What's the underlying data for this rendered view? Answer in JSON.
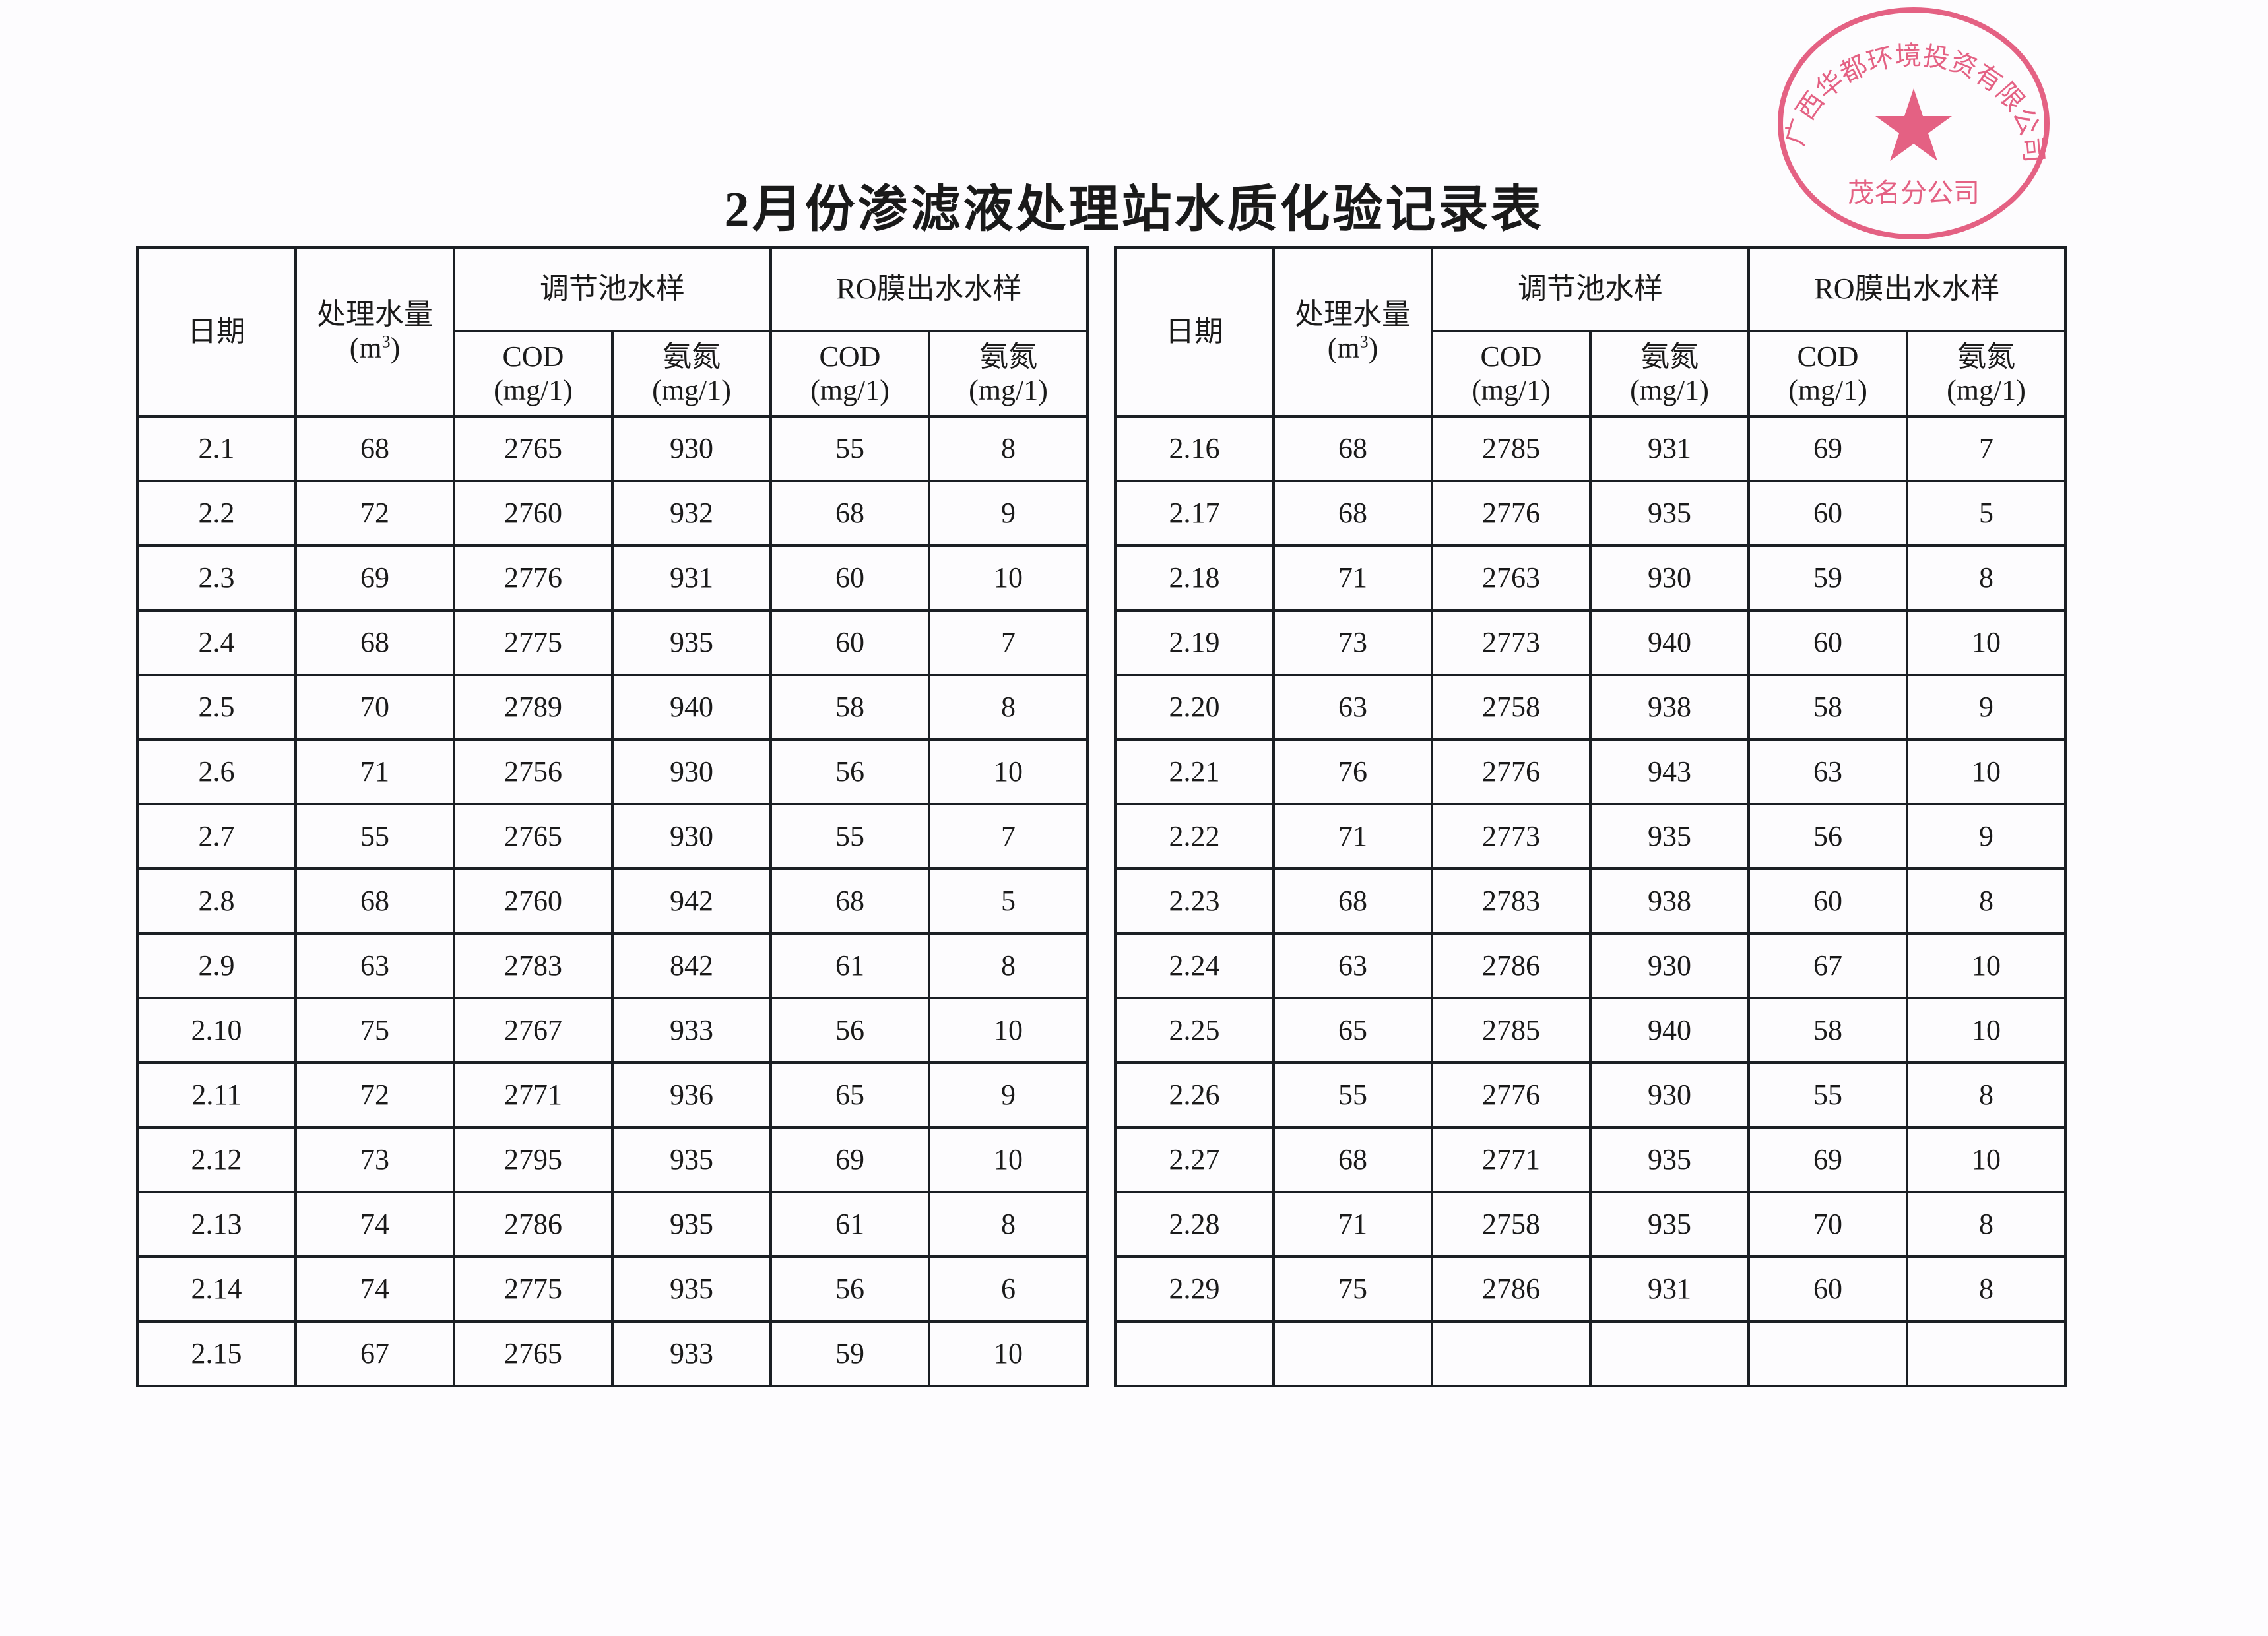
{
  "title": "2月份渗滤液处理站水质化验记录表",
  "headers": {
    "date": "日期",
    "volume": "处理水量",
    "volume_unit": "(m",
    "volume_unit_sup": "3",
    "volume_unit_close": ")",
    "regulating_tank": "调节池水样",
    "ro_effluent": "RO膜出水水样",
    "cod": "COD",
    "ammonia": "氨氮",
    "unit": "(mg/1)"
  },
  "left_rows": [
    [
      "2.1",
      "68",
      "2765",
      "930",
      "55",
      "8"
    ],
    [
      "2.2",
      "72",
      "2760",
      "932",
      "68",
      "9"
    ],
    [
      "2.3",
      "69",
      "2776",
      "931",
      "60",
      "10"
    ],
    [
      "2.4",
      "68",
      "2775",
      "935",
      "60",
      "7"
    ],
    [
      "2.5",
      "70",
      "2789",
      "940",
      "58",
      "8"
    ],
    [
      "2.6",
      "71",
      "2756",
      "930",
      "56",
      "10"
    ],
    [
      "2.7",
      "55",
      "2765",
      "930",
      "55",
      "7"
    ],
    [
      "2.8",
      "68",
      "2760",
      "942",
      "68",
      "5"
    ],
    [
      "2.9",
      "63",
      "2783",
      "842",
      "61",
      "8"
    ],
    [
      "2.10",
      "75",
      "2767",
      "933",
      "56",
      "10"
    ],
    [
      "2.11",
      "72",
      "2771",
      "936",
      "65",
      "9"
    ],
    [
      "2.12",
      "73",
      "2795",
      "935",
      "69",
      "10"
    ],
    [
      "2.13",
      "74",
      "2786",
      "935",
      "61",
      "8"
    ],
    [
      "2.14",
      "74",
      "2775",
      "935",
      "56",
      "6"
    ],
    [
      "2.15",
      "67",
      "2765",
      "933",
      "59",
      "10"
    ]
  ],
  "right_rows": [
    [
      "2.16",
      "68",
      "2785",
      "931",
      "69",
      "7"
    ],
    [
      "2.17",
      "68",
      "2776",
      "935",
      "60",
      "5"
    ],
    [
      "2.18",
      "71",
      "2763",
      "930",
      "59",
      "8"
    ],
    [
      "2.19",
      "73",
      "2773",
      "940",
      "60",
      "10"
    ],
    [
      "2.20",
      "63",
      "2758",
      "938",
      "58",
      "9"
    ],
    [
      "2.21",
      "76",
      "2776",
      "943",
      "63",
      "10"
    ],
    [
      "2.22",
      "71",
      "2773",
      "935",
      "56",
      "9"
    ],
    [
      "2.23",
      "68",
      "2783",
      "938",
      "60",
      "8"
    ],
    [
      "2.24",
      "63",
      "2786",
      "930",
      "67",
      "10"
    ],
    [
      "2.25",
      "65",
      "2785",
      "940",
      "58",
      "10"
    ],
    [
      "2.26",
      "55",
      "2776",
      "930",
      "55",
      "8"
    ],
    [
      "2.27",
      "68",
      "2771",
      "935",
      "69",
      "10"
    ],
    [
      "2.28",
      "71",
      "2758",
      "935",
      "70",
      "8"
    ],
    [
      "2.29",
      "75",
      "2786",
      "931",
      "60",
      "8"
    ],
    [
      "",
      "",
      "",
      "",
      "",
      ""
    ]
  ],
  "stamp": {
    "text_outer": "广西华都环境投资有限公司",
    "text_inner": "茂名分公司",
    "color": "#e0466e"
  }
}
